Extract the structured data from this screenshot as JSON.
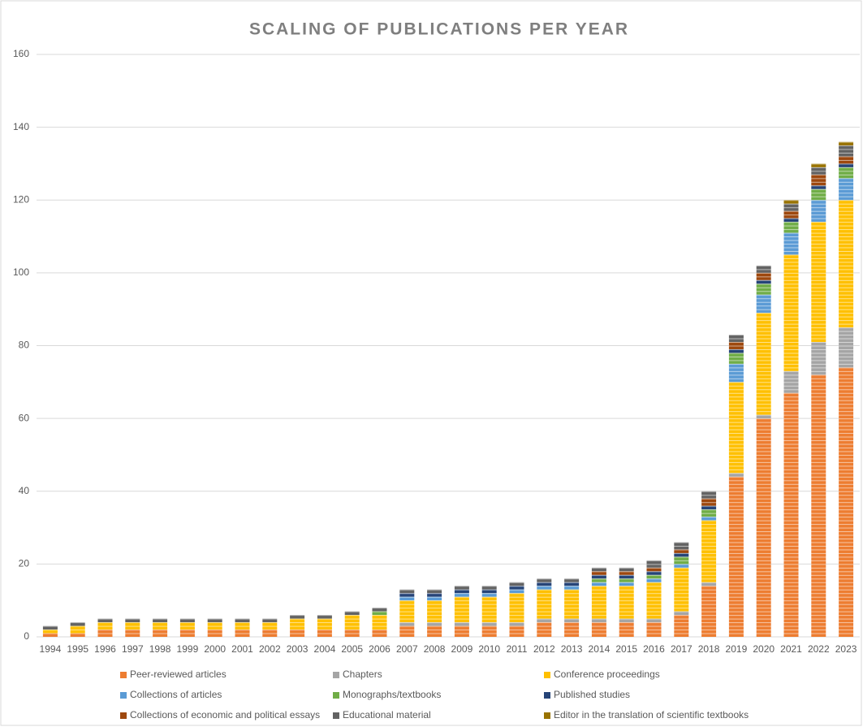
{
  "chart_data": {
    "type": "stacked_bar",
    "title": "SCALING OF PUBLICATIONS PER YEAR",
    "categories": [
      "1994",
      "1995",
      "1996",
      "1997",
      "1998",
      "1999",
      "2000",
      "2001",
      "2002",
      "2003",
      "2004",
      "2005",
      "2006",
      "2007",
      "2008",
      "2009",
      "2010",
      "2011",
      "2012",
      "2013",
      "2014",
      "2015",
      "2016",
      "2017",
      "2018",
      "2019",
      "2020",
      "2021",
      "2022",
      "2023"
    ],
    "series": [
      {
        "name": "Peer-reviewed articles",
        "color": "#ed7d31",
        "values": [
          1,
          1,
          2,
          2,
          2,
          2,
          2,
          2,
          2,
          2,
          2,
          2,
          2,
          3,
          3,
          3,
          3,
          3,
          4,
          4,
          4,
          4,
          4,
          6,
          14,
          44,
          60,
          67,
          72,
          74
        ]
      },
      {
        "name": "Chapters",
        "color": "#a5a5a5",
        "values": [
          0,
          0,
          0,
          0,
          0,
          0,
          0,
          0,
          0,
          0,
          0,
          0,
          0,
          1,
          1,
          1,
          1,
          1,
          1,
          1,
          1,
          1,
          1,
          1,
          1,
          1,
          1,
          6,
          9,
          11
        ]
      },
      {
        "name": "Conference proceedings",
        "color": "#ffc000",
        "values": [
          1,
          2,
          2,
          2,
          2,
          2,
          2,
          2,
          2,
          3,
          3,
          4,
          4,
          6,
          6,
          7,
          7,
          8,
          8,
          8,
          9,
          9,
          10,
          12,
          17,
          25,
          28,
          32,
          33,
          35
        ]
      },
      {
        "name": "Collections of articles",
        "color": "#5b9bd5",
        "values": [
          0,
          0,
          0,
          0,
          0,
          0,
          0,
          0,
          0,
          0,
          0,
          0,
          0,
          1,
          1,
          1,
          1,
          1,
          1,
          1,
          1,
          1,
          1,
          1,
          1,
          5,
          5,
          6,
          6,
          6
        ]
      },
      {
        "name": "Monographs/textbooks",
        "color": "#70ad47",
        "values": [
          0,
          0,
          0,
          0,
          0,
          0,
          0,
          0,
          0,
          0,
          0,
          0,
          1,
          0,
          0,
          0,
          0,
          0,
          0,
          0,
          1,
          1,
          1,
          2,
          2,
          3,
          3,
          3,
          3,
          3
        ]
      },
      {
        "name": "Published studies",
        "color": "#264478",
        "values": [
          0,
          0,
          0,
          0,
          0,
          0,
          0,
          0,
          0,
          0,
          0,
          0,
          0,
          1,
          1,
          1,
          1,
          1,
          1,
          1,
          1,
          1,
          1,
          1,
          1,
          1,
          1,
          1,
          1,
          1
        ]
      },
      {
        "name": "Collections of economic and political essays",
        "color": "#9e480e",
        "values": [
          0,
          0,
          0,
          0,
          0,
          0,
          0,
          0,
          0,
          0,
          0,
          0,
          0,
          0,
          0,
          0,
          0,
          0,
          0,
          0,
          1,
          1,
          1,
          1,
          2,
          2,
          2,
          2,
          3,
          2
        ]
      },
      {
        "name": "Educational material",
        "color": "#636363",
        "values": [
          1,
          1,
          1,
          1,
          1,
          1,
          1,
          1,
          1,
          1,
          1,
          1,
          1,
          1,
          1,
          1,
          1,
          1,
          1,
          1,
          1,
          1,
          2,
          2,
          2,
          2,
          2,
          2,
          2,
          3
        ]
      },
      {
        "name": "Editor in the translation of scientific textbooks",
        "color": "#997300",
        "values": [
          0,
          0,
          0,
          0,
          0,
          0,
          0,
          0,
          0,
          0,
          0,
          0,
          0,
          0,
          0,
          0,
          0,
          0,
          0,
          0,
          0,
          0,
          0,
          0,
          0,
          0,
          0,
          1,
          1,
          1
        ]
      }
    ],
    "ylim": [
      0,
      160
    ],
    "yticks": [
      0,
      20,
      40,
      60,
      80,
      100,
      120,
      140,
      160
    ],
    "grid": true,
    "legend": "bottom"
  }
}
